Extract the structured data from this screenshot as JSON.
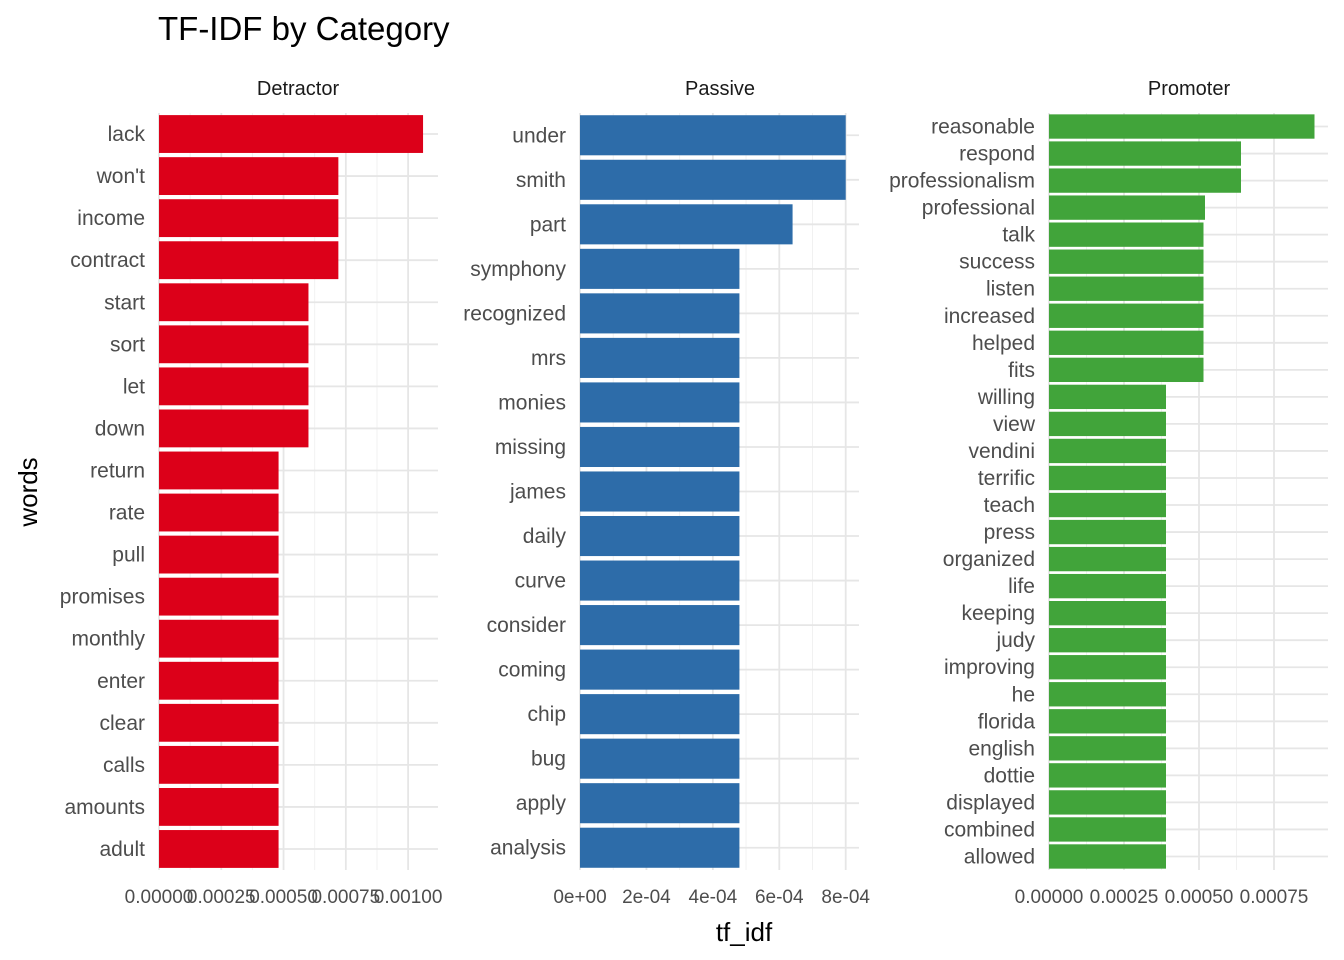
{
  "chart_data": {
    "type": "bar",
    "orientation": "horizontal",
    "title": "TF-IDF by Category",
    "xlabel": "tf_idf",
    "ylabel": "words",
    "grid": true,
    "colors": {
      "Detractor": "#dc0019",
      "Passive": "#2d6ca9",
      "Promoter": "#41a43a"
    },
    "panels": [
      {
        "name": "Detractor",
        "xlim": [
          0,
          0.00112
        ],
        "xticks": [
          0,
          0.00025,
          0.0005,
          0.00075,
          0.001
        ],
        "xtick_labels": [
          "0.00000",
          "0.00025",
          "0.00050",
          "0.00075",
          "0.00100"
        ],
        "categories": [
          "lack",
          "won't",
          "income",
          "contract",
          "start",
          "sort",
          "let",
          "down",
          "return",
          "rate",
          "pull",
          "promises",
          "monthly",
          "enter",
          "clear",
          "calls",
          "amounts",
          "adult"
        ],
        "values": [
          0.00106,
          0.00072,
          0.00072,
          0.00072,
          0.0006,
          0.0006,
          0.0006,
          0.0006,
          0.00048,
          0.00048,
          0.00048,
          0.00048,
          0.00048,
          0.00048,
          0.00048,
          0.00048,
          0.00048,
          0.00048
        ]
      },
      {
        "name": "Passive",
        "xlim": [
          0,
          0.00084
        ],
        "xticks": [
          0,
          0.0002,
          0.0004,
          0.0006,
          0.0008
        ],
        "xtick_labels": [
          "0e+00",
          "2e-04",
          "4e-04",
          "6e-04",
          "8e-04"
        ],
        "categories": [
          "under",
          "smith",
          "part",
          "symphony",
          "recognized",
          "mrs",
          "monies",
          "missing",
          "james",
          "daily",
          "curve",
          "consider",
          "coming",
          "chip",
          "bug",
          "apply",
          "analysis"
        ],
        "values": [
          0.0008,
          0.0008,
          0.00064,
          0.00048,
          0.00048,
          0.00048,
          0.00048,
          0.00048,
          0.00048,
          0.00048,
          0.00048,
          0.00048,
          0.00048,
          0.00048,
          0.00048,
          0.00048,
          0.00048
        ]
      },
      {
        "name": "Promoter",
        "xlim": [
          0,
          0.00093
        ],
        "xticks": [
          0,
          0.00025,
          0.0005,
          0.00075
        ],
        "xtick_labels": [
          "0.00000",
          "0.00025",
          "0.00050",
          "0.00075"
        ],
        "categories": [
          "reasonable",
          "respond",
          "professionalism",
          "professional",
          "talk",
          "success",
          "listen",
          "increased",
          "helped",
          "fits",
          "willing",
          "view",
          "vendini",
          "terrific",
          "teach",
          "press",
          "organized",
          "life",
          "keeping",
          "judy",
          "improving",
          "he",
          "florida",
          "english",
          "dottie",
          "displayed",
          "combined",
          "allowed"
        ],
        "values": [
          0.000885,
          0.00064,
          0.00064,
          0.00052,
          0.000515,
          0.000515,
          0.000515,
          0.000515,
          0.000515,
          0.000515,
          0.00039,
          0.00039,
          0.00039,
          0.00039,
          0.00039,
          0.00039,
          0.00039,
          0.00039,
          0.00039,
          0.00039,
          0.00039,
          0.00039,
          0.00039,
          0.00039,
          0.00039,
          0.00039,
          0.00039,
          0.00039
        ]
      }
    ]
  }
}
